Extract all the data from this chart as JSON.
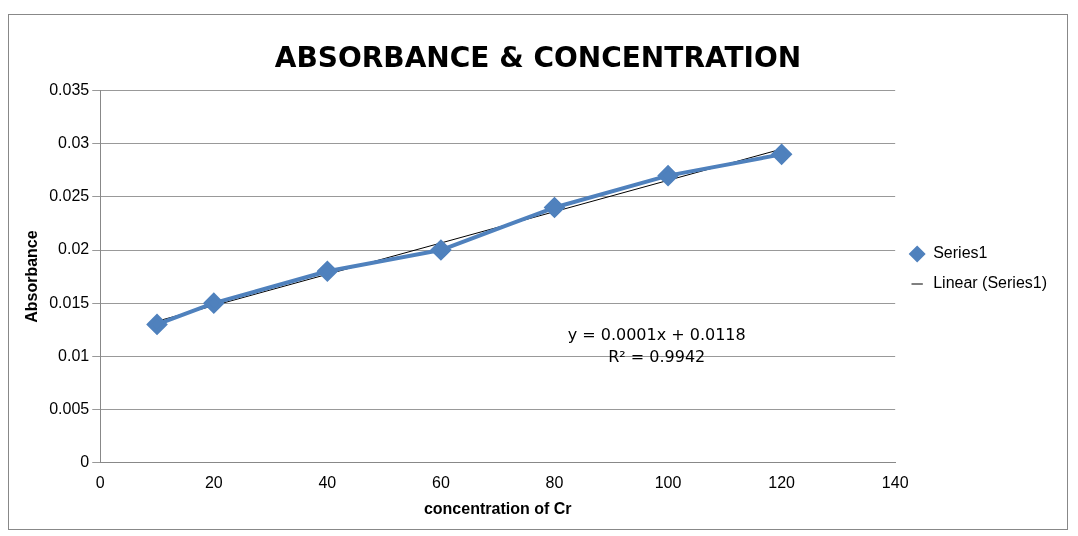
{
  "chart_data": {
    "type": "line",
    "title": "ABSORBANCE & CONCENTRATION",
    "xlabel": "concentration of Cr",
    "ylabel": "Absorbance",
    "series": [
      {
        "name": "Series1",
        "color": "#4f81bd",
        "x": [
          10,
          20,
          40,
          60,
          80,
          100,
          120
        ],
        "values": [
          0.013,
          0.015,
          0.018,
          0.02,
          0.024,
          0.027,
          0.029
        ],
        "marker": "diamond"
      },
      {
        "name": "Linear (Series1)",
        "color": "#000000",
        "x": [
          10,
          120
        ],
        "values": [
          0.0133,
          0.0295
        ],
        "marker": "none"
      }
    ],
    "annotations": [
      "y = 0.0001x + 0.0118",
      "R² = 0.9942"
    ],
    "xlim": [
      0,
      140
    ],
    "xticks": [
      0,
      20,
      40,
      60,
      80,
      100,
      120,
      140
    ],
    "ylim": [
      0,
      0.035
    ],
    "yticks": [
      0,
      0.005,
      0.01,
      0.015,
      0.02,
      0.025,
      0.03,
      0.035
    ],
    "grid": "y",
    "legend": "right"
  }
}
